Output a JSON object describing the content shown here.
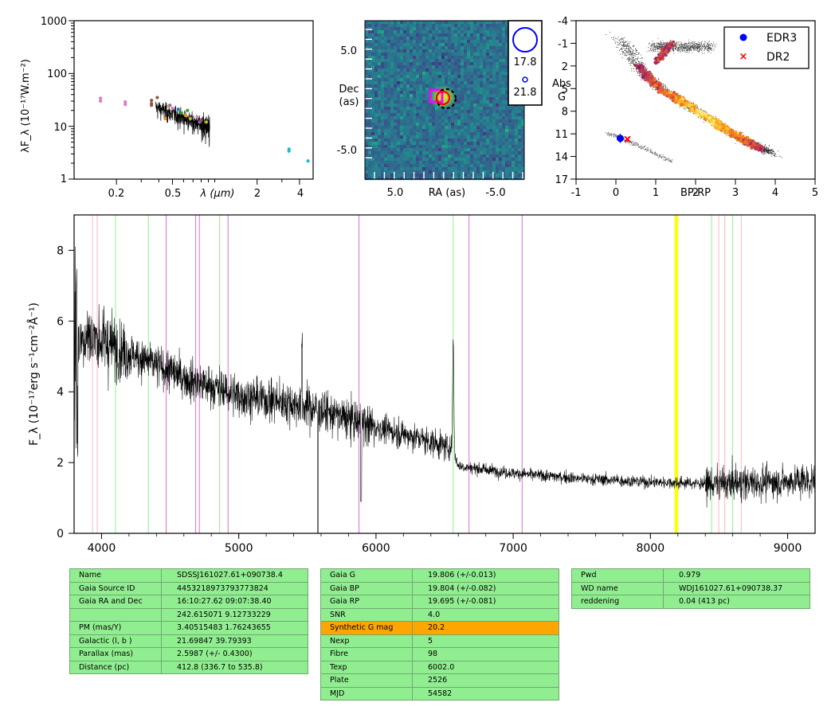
{
  "sed_panel": {
    "ylabel": "λF_λ (10⁻¹⁷W.m⁻²)",
    "xlabel": "λ (μm)",
    "yticks": [
      "1",
      "10",
      "100",
      "1000"
    ],
    "xticks": [
      "0.2",
      "0.5",
      "2",
      "4"
    ]
  },
  "image_panel": {
    "ylabel_top": "Dec",
    "ylabel_bottom": "(as)",
    "xlabel": "RA (as)",
    "yticks": [
      "5.0",
      "-5.0"
    ],
    "xticks": [
      "5.0",
      "-5.0"
    ],
    "mag_big": "17.8",
    "mag_small": "21.8"
  },
  "hrd_panel": {
    "ylabel_top": "Abs",
    "ylabel_bottom": "G",
    "xlabel": "BP-RP",
    "yticks": [
      "-4",
      "-1",
      "2",
      "5",
      "8",
      "11",
      "14",
      "17"
    ],
    "xticks": [
      "-1",
      "0",
      "1",
      "2",
      "3",
      "4",
      "5"
    ],
    "legend": [
      "EDR3",
      "DR2"
    ]
  },
  "chart_data": [
    {
      "type": "scatter",
      "name": "sed",
      "xscale": "log",
      "yscale": "log",
      "xlim": [
        0.1,
        5.0
      ],
      "ylim": [
        1,
        1000
      ],
      "points": [
        {
          "x": 0.154,
          "y": 34,
          "color": "#e377c2"
        },
        {
          "x": 0.154,
          "y": 30,
          "color": "#e377c2"
        },
        {
          "x": 0.231,
          "y": 29,
          "color": "#e377c2"
        },
        {
          "x": 0.231,
          "y": 26,
          "color": "#e377c2"
        },
        {
          "x": 0.355,
          "y": 31,
          "color": "#8c564b"
        },
        {
          "x": 0.355,
          "y": 27,
          "color": "#8c564b"
        },
        {
          "x": 0.355,
          "y": 25,
          "color": "#8c564b"
        },
        {
          "x": 0.39,
          "y": 35,
          "color": "#8c564b"
        },
        {
          "x": 0.445,
          "y": 14,
          "color": "#ff7f0e"
        },
        {
          "x": 0.468,
          "y": 24,
          "color": "#bcbd22"
        },
        {
          "x": 0.48,
          "y": 25,
          "color": "#9467bd"
        },
        {
          "x": 0.5,
          "y": 22,
          "color": "#e377c2"
        },
        {
          "x": 0.55,
          "y": 21,
          "color": "#1f77b4"
        },
        {
          "x": 0.58,
          "y": 18,
          "color": "#2ca02c"
        },
        {
          "x": 0.62,
          "y": 16,
          "color": "#ff7f0e"
        },
        {
          "x": 0.64,
          "y": 20,
          "color": "#2ca02c"
        },
        {
          "x": 0.67,
          "y": 14,
          "color": "#bcbd22"
        },
        {
          "x": 0.75,
          "y": 15,
          "color": "#e377c2"
        },
        {
          "x": 0.78,
          "y": 12,
          "color": "#9467bd"
        },
        {
          "x": 0.8,
          "y": 13,
          "color": "#8c564b"
        },
        {
          "x": 0.87,
          "y": 12,
          "color": "#bcbd22"
        },
        {
          "x": 3.37,
          "y": 3.7,
          "color": "#17becf"
        },
        {
          "x": 3.37,
          "y": 3.4,
          "color": "#17becf"
        },
        {
          "x": 4.6,
          "y": 2.2,
          "color": "#17becf"
        }
      ]
    },
    {
      "type": "heatmap",
      "name": "image-cutout",
      "xlim": [
        10,
        -10
      ],
      "ylim": [
        -10,
        10
      ],
      "source_markers": [
        {
          "x": -0.6,
          "y": 0.6,
          "marker": "circle",
          "color": "#ff0000"
        },
        {
          "x": -1.0,
          "y": 0.3,
          "marker": "dashed-circle",
          "color": "#000000"
        },
        {
          "x": 1.0,
          "y": 0.9,
          "marker": "square",
          "color": "#ff00ff"
        }
      ]
    },
    {
      "type": "scatter",
      "name": "hr-diagram",
      "xlim": [
        -1,
        5
      ],
      "ylim": [
        17,
        -4
      ],
      "series": [
        {
          "name": "EDR3",
          "color": "#0000ff",
          "marker": "circle",
          "points": [
            {
              "x": 0.11,
              "y": 11.6
            }
          ]
        },
        {
          "name": "DR2",
          "color": "#ff0000",
          "marker": "x",
          "points": [
            {
              "x": 0.29,
              "y": 11.7
            }
          ]
        }
      ]
    },
    {
      "type": "line",
      "name": "spectrum",
      "xlim": [
        3800,
        9200
      ],
      "ylim": [
        0,
        9
      ],
      "ylabel": "F_λ (10⁻¹⁷erg s⁻¹cm⁻²Å⁻¹)",
      "xticks": [
        "4000",
        "5000",
        "6000",
        "7000",
        "8000",
        "9000"
      ],
      "yticks": [
        "0",
        "2",
        "4",
        "6",
        "8"
      ],
      "continuum_anchors": [
        [
          3800,
          5.4
        ],
        [
          3900,
          5.6
        ],
        [
          4200,
          5.1
        ],
        [
          4600,
          4.4
        ],
        [
          5000,
          3.9
        ],
        [
          5500,
          3.6
        ],
        [
          5900,
          3.1
        ],
        [
          6300,
          2.7
        ],
        [
          6560,
          2.4
        ],
        [
          6600,
          1.9
        ],
        [
          7000,
          1.7
        ],
        [
          7500,
          1.55
        ],
        [
          8000,
          1.45
        ],
        [
          8500,
          1.4
        ],
        [
          9200,
          1.5
        ]
      ],
      "lines": [
        {
          "x": 3934,
          "color": "#ffb6c1"
        },
        {
          "x": 3969,
          "color": "#ffb6c1"
        },
        {
          "x": 4102,
          "color": "#90ee90"
        },
        {
          "x": 4341,
          "color": "#90ee90"
        },
        {
          "x": 4471,
          "color": "#da70d6"
        },
        {
          "x": 4686,
          "color": "#da70d6"
        },
        {
          "x": 4713,
          "color": "#da70d6"
        },
        {
          "x": 4861,
          "color": "#90ee90"
        },
        {
          "x": 4922,
          "color": "#da70d6"
        },
        {
          "x": 5876,
          "color": "#da70d6"
        },
        {
          "x": 6563,
          "color": "#90ee90"
        },
        {
          "x": 6678,
          "color": "#da70d6"
        },
        {
          "x": 7065,
          "color": "#da70d6"
        },
        {
          "x": 8183,
          "color": "#ffff00"
        },
        {
          "x": 8195,
          "color": "#ffff00"
        },
        {
          "x": 8446,
          "color": "#90ee90"
        },
        {
          "x": 8498,
          "color": "#ffb6c1"
        },
        {
          "x": 8542,
          "color": "#ffb6c1"
        },
        {
          "x": 8598,
          "color": "#90ee90"
        },
        {
          "x": 8662,
          "color": "#ffb6c1"
        }
      ]
    }
  ],
  "tables": {
    "left": [
      {
        "k": "Name",
        "v": "SDSSJ161027.61+090738.4"
      },
      {
        "k": "Gaia Source ID",
        "v": "4453218973793773824"
      },
      {
        "k": "Gaia RA and Dec",
        "v": "16:10:27.62    09:07:38.40"
      },
      {
        "k": "",
        "v": "242.615071    9.12733229"
      },
      {
        "k": "PM (mas/Y)",
        "v": "3.40515483    1.76243655"
      },
      {
        "k": "Galactic (l, b )",
        "v": "21.69847    39.79393"
      },
      {
        "k": "Parallax (mas)",
        "v": "2.5987 (+/- 0.4300)"
      },
      {
        "k": "Distance (pc)",
        "v": "412.8 (336.7 to 535.8)"
      }
    ],
    "middle": [
      {
        "k": "Gaia G",
        "v": "19.806 (+/-0.013)"
      },
      {
        "k": "Gaia BP",
        "v": "19.804 (+/-0.082)"
      },
      {
        "k": "Gaia RP",
        "v": "19.695 (+/-0.081)"
      },
      {
        "k": "SNR",
        "v": "4.0"
      },
      {
        "k": "Synthetic G mag",
        "v": "20.2"
      },
      {
        "k": "Nexp",
        "v": "5"
      },
      {
        "k": "Fibre",
        "v": "98"
      },
      {
        "k": "Texp",
        "v": "6002.0"
      },
      {
        "k": "Plate",
        "v": "2526"
      },
      {
        "k": "MJD",
        "v": "54582"
      }
    ],
    "right": [
      {
        "k": "Pwd",
        "v": "0.979"
      },
      {
        "k": "WD name",
        "v": "WDJ161027.61+090738.37"
      },
      {
        "k": "reddening",
        "v": "0.04 (413 pc)"
      }
    ],
    "highlight": "Synthetic G mag"
  }
}
